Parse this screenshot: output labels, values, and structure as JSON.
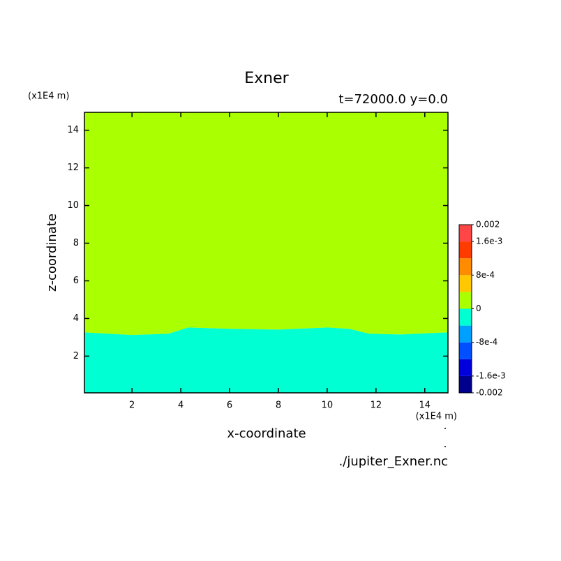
{
  "chart_data": {
    "type": "contour",
    "title": "Exner",
    "subtitle": "t=72000.0 y=0.0",
    "x_label": "x-coordinate",
    "y_label": "z-coordinate",
    "x_unit": "(x1E4 m)",
    "y_unit": "(x1E4 m)",
    "source": "./jupiter_Exner.nc",
    "contour_level": 0,
    "x": [
      0.05,
      2,
      3.5,
      4.3,
      6,
      8,
      10,
      10.9,
      11.7,
      13,
      14.95
    ],
    "boundary_z": [
      3.26,
      3.12,
      3.19,
      3.52,
      3.45,
      3.41,
      3.52,
      3.45,
      3.19,
      3.15,
      3.26
    ],
    "xlim": [
      0.05,
      14.95
    ],
    "ylim": [
      0.05,
      14.95
    ],
    "xticks": [
      2,
      4,
      6,
      8,
      10,
      12,
      14
    ],
    "yticks": [
      2,
      4,
      6,
      8,
      10,
      12,
      14
    ],
    "colorbar": {
      "levels": [
        -0.002,
        -0.0016,
        -0.0012,
        -0.0008,
        -0.0004,
        0,
        0.0004,
        0.0008,
        0.0012,
        0.0016,
        0.002
      ],
      "colors": [
        "#00008c",
        "#0000dc",
        "#0050ff",
        "#00a0ff",
        "#00ffd2",
        "#aaff00",
        "#ffc800",
        "#ff8c00",
        "#ff3c00",
        "#ff4646"
      ],
      "ticks": [
        -0.002,
        {
          "value": -0.0016,
          "label": "-1.6e-3"
        },
        {
          "value": -0.0008,
          "label": "-8e-4"
        },
        0,
        {
          "value": 0.0008,
          "label": "8e-4"
        },
        {
          "value": 0.0016,
          "label": "1.6e-3"
        },
        0.002
      ]
    }
  }
}
